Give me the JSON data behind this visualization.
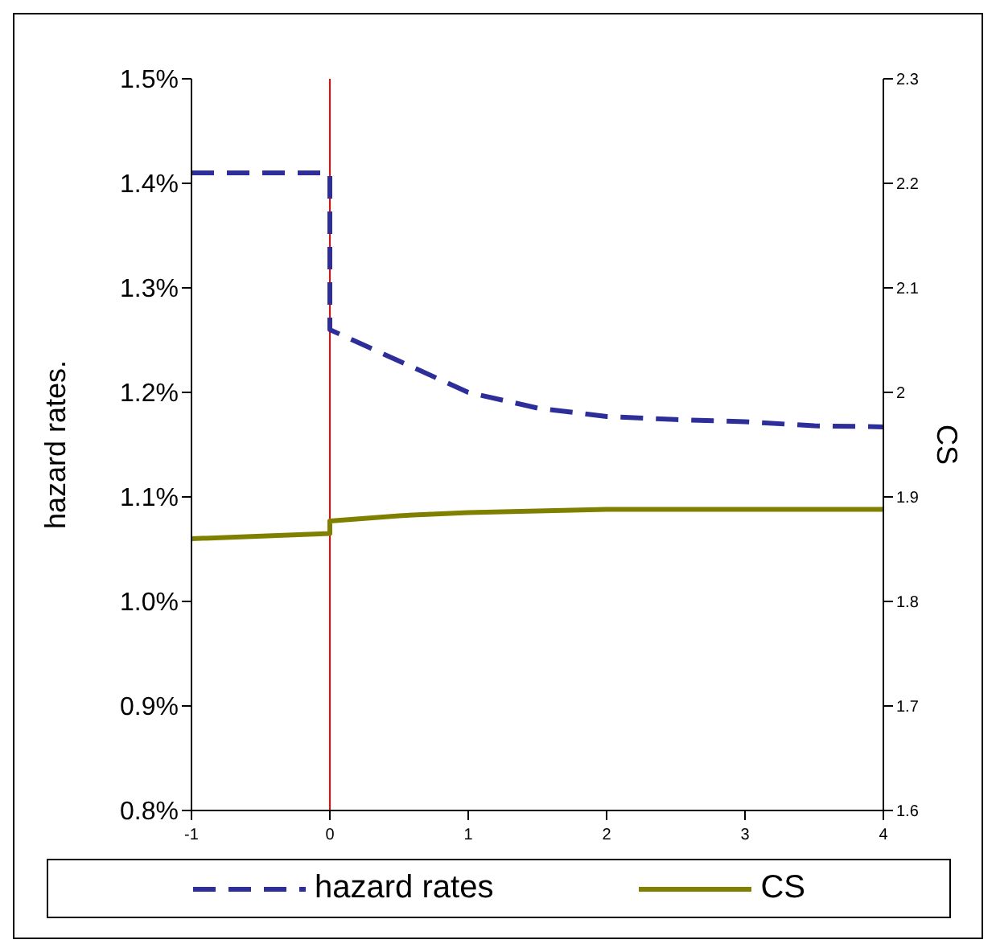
{
  "chart_data": {
    "type": "line",
    "ylabel": "hazard rates.",
    "y2label": "CS",
    "xlim": [
      -1,
      4
    ],
    "xticks": [
      -1,
      0,
      1,
      2,
      3,
      4
    ],
    "ylim": [
      0.8,
      1.5
    ],
    "yticks": [
      {
        "value": 0.8,
        "label": "0.8%"
      },
      {
        "value": 0.9,
        "label": "0.9%"
      },
      {
        "value": 1.0,
        "label": "1.0%"
      },
      {
        "value": 1.1,
        "label": "1.1%"
      },
      {
        "value": 1.2,
        "label": "1.2%"
      },
      {
        "value": 1.3,
        "label": "1.3%"
      },
      {
        "value": 1.4,
        "label": "1.4%"
      },
      {
        "value": 1.5,
        "label": "1.5%"
      }
    ],
    "y2lim": [
      1.6,
      2.3
    ],
    "y2ticks": [
      1.6,
      1.7,
      1.8,
      1.9,
      2,
      2.1,
      2.2,
      2.3
    ],
    "series": [
      {
        "name": "hazard rates",
        "color": "#2e2e9a",
        "line_style": "dashed",
        "x": [
          -1,
          0,
          0,
          0.5,
          1,
          1.5,
          2,
          2.5,
          3,
          3.5,
          4
        ],
        "values": [
          1.41,
          1.41,
          1.26,
          1.23,
          1.2,
          1.185,
          1.177,
          1.174,
          1.172,
          1.168,
          1.167
        ]
      },
      {
        "name": "CS",
        "color": "#808000",
        "line_style": "solid",
        "axis": "y2",
        "x": [
          -1,
          0,
          0,
          0.5,
          1,
          2,
          3,
          4
        ],
        "values": [
          1.86,
          1.865,
          1.877,
          1.882,
          1.885,
          1.888,
          1.888,
          1.888
        ]
      }
    ],
    "ref_lines": [
      {
        "axis": "x",
        "value": 0,
        "color": "#ff0000",
        "line_style": "solid"
      }
    ],
    "marker": "none",
    "grid": false,
    "legend": "bottom"
  }
}
